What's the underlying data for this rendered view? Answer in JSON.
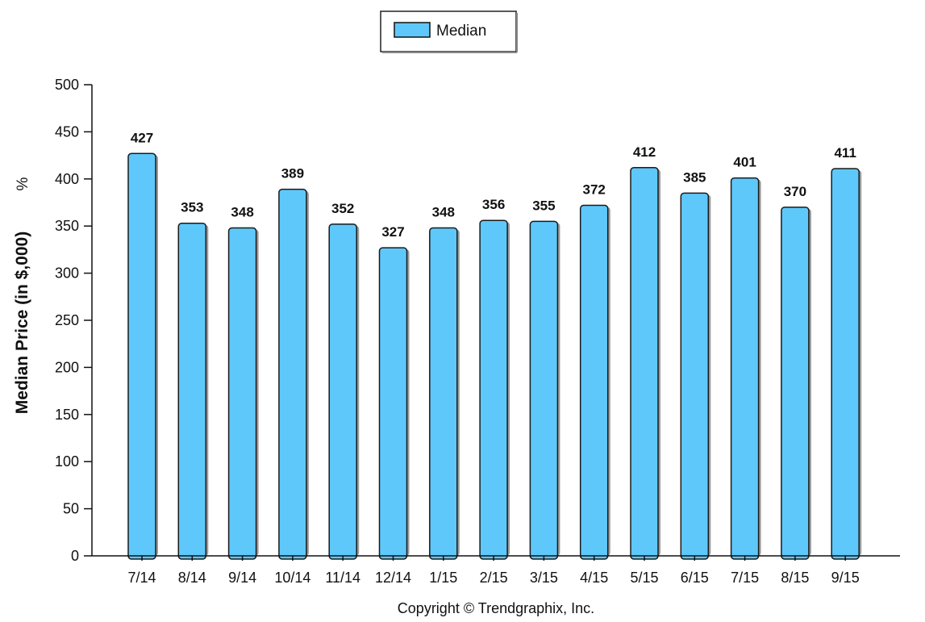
{
  "chart_data": {
    "type": "bar",
    "categories": [
      "7/14",
      "8/14",
      "9/14",
      "10/14",
      "11/14",
      "12/14",
      "1/15",
      "2/15",
      "3/15",
      "4/15",
      "5/15",
      "6/15",
      "7/15",
      "8/15",
      "9/15"
    ],
    "series": [
      {
        "name": "Median",
        "values": [
          427,
          353,
          348,
          389,
          352,
          327,
          348,
          356,
          355,
          372,
          412,
          385,
          401,
          370,
          411
        ],
        "color": "#5ec8fa"
      }
    ],
    "title": "",
    "xlabel": "",
    "ylabel": "Median Price (in $,000)",
    "ylabel_suffix": "%",
    "ylim": [
      0,
      500
    ],
    "yticks": [
      0,
      50,
      100,
      150,
      200,
      250,
      300,
      350,
      400,
      450,
      500
    ],
    "grid": false,
    "legend_position": "top-center",
    "data_labels": true
  },
  "footer": {
    "copyright": "Copyright © Trendgraphix, Inc."
  }
}
